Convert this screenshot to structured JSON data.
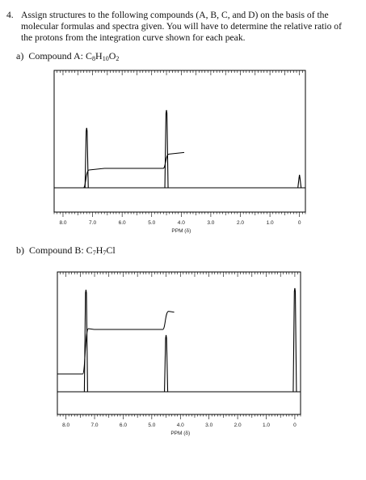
{
  "question": {
    "number": "4.",
    "text": "Assign structures to the following compounds (A, B, C, and D) on the basis of the molecular formulas and spectra given. You will have to determine the relative ratio of the protons from the integration curve shown for each peak."
  },
  "part_a": {
    "letter": "a)",
    "label": "Compound A: C",
    "f1": "8",
    "f2": "H",
    "f3": "10",
    "f4": "O",
    "f5": "2"
  },
  "part_b": {
    "letter": "b)",
    "label": "Compound B: C",
    "f1": "7",
    "f2": "H",
    "f3": "7",
    "f4": "Cl"
  },
  "chart_data": [
    {
      "type": "line",
      "xlabel": "PPM (δ)",
      "x_ticks": [
        "8.0",
        "7.0",
        "6.0",
        "5.0",
        "4.0",
        "3.0",
        "2.0",
        "1.0",
        "0"
      ],
      "xlim": [
        8.3,
        -0.2
      ],
      "peaks_ppm": [
        7.2,
        4.5,
        0.0
      ],
      "integration_steps": [
        {
          "ppm": 7.2,
          "height": 5
        },
        {
          "ppm": 4.5,
          "height": 4
        }
      ]
    },
    {
      "type": "line",
      "xlabel": "PPM (δ)",
      "x_ticks": [
        "8.0",
        "7.0",
        "6.0",
        "5.0",
        "4.0",
        "3.0",
        "2.0",
        "1.0",
        "0"
      ],
      "xlim": [
        8.3,
        -0.2
      ],
      "peaks_ppm": [
        7.3,
        4.5,
        0.0
      ],
      "integration_steps": [
        {
          "ppm": 7.3,
          "height": 5
        },
        {
          "ppm": 4.5,
          "height": 2
        }
      ]
    }
  ]
}
